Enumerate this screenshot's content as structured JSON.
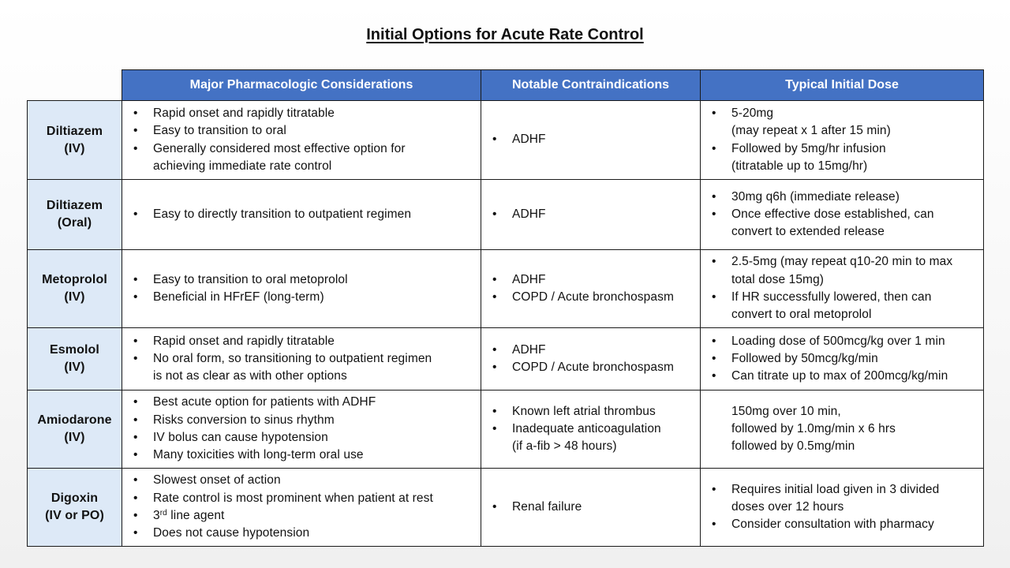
{
  "title": "Initial Options for Acute Rate Control",
  "headers": {
    "col1": "Major Pharmacologic Considerations",
    "col2": "Notable Contraindications",
    "col3": "Typical Initial Dose"
  },
  "rows": [
    {
      "drug": "Diltiazem",
      "route": "(IV)",
      "considerations": [
        {
          "text": "Rapid onset and rapidly titratable",
          "bullet": true
        },
        {
          "text": "Easy to transition to oral",
          "bullet": true
        },
        {
          "text": "Generally considered most effective option for",
          "bullet": true
        },
        {
          "text": "achieving immediate rate control",
          "bullet": false
        }
      ],
      "contraindications": [
        {
          "text": "ADHF",
          "bullet": true
        }
      ],
      "dose": [
        {
          "text": "5-20mg",
          "bullet": true
        },
        {
          "text": "(may repeat x 1 after 15 min)",
          "bullet": false
        },
        {
          "text": "Followed by 5mg/hr infusion",
          "bullet": true
        },
        {
          "text": "(titratable up to 15mg/hr)",
          "bullet": false
        }
      ]
    },
    {
      "drug": "Diltiazem",
      "route": "(Oral)",
      "considerations": [
        {
          "text": "Easy to directly transition to outpatient regimen",
          "bullet": true
        }
      ],
      "contraindications": [
        {
          "text": "ADHF",
          "bullet": true
        }
      ],
      "dose": [
        {
          "text": "30mg q6h (immediate release)",
          "bullet": true
        },
        {
          "text": "Once effective dose established, can",
          "bullet": true
        },
        {
          "text": "convert to extended release",
          "bullet": false
        }
      ]
    },
    {
      "drug": "Metoprolol",
      "route": "(IV)",
      "considerations": [
        {
          "text": "Easy to transition to oral metoprolol",
          "bullet": true
        },
        {
          "text": "Beneficial in HFrEF (long-term)",
          "bullet": true
        }
      ],
      "contraindications": [
        {
          "text": "ADHF",
          "bullet": true
        },
        {
          "text": "COPD / Acute bronchospasm",
          "bullet": true
        }
      ],
      "dose": [
        {
          "text": "2.5-5mg (may repeat q10-20 min to max",
          "bullet": true
        },
        {
          "text": "total dose 15mg)",
          "bullet": false
        },
        {
          "text": "If HR successfully lowered, then can",
          "bullet": true
        },
        {
          "text": "convert to oral metoprolol",
          "bullet": false
        }
      ]
    },
    {
      "drug": "Esmolol",
      "route": "(IV)",
      "considerations": [
        {
          "text": "Rapid onset and rapidly titratable",
          "bullet": true
        },
        {
          "text": "No oral form, so transitioning to outpatient regimen",
          "bullet": true
        },
        {
          "text": "is not as clear as with other options",
          "bullet": false
        }
      ],
      "contraindications": [
        {
          "text": "ADHF",
          "bullet": true
        },
        {
          "text": "COPD / Acute bronchospasm",
          "bullet": true
        }
      ],
      "dose": [
        {
          "text": "Loading dose of 500mcg/kg over 1 min",
          "bullet": true
        },
        {
          "text": "Followed by 50mcg/kg/min",
          "bullet": true
        },
        {
          "text": "Can titrate up to max of 200mcg/kg/min",
          "bullet": true
        }
      ]
    },
    {
      "drug": "Amiodarone",
      "route": "(IV)",
      "considerations": [
        {
          "text": "Best acute option for patients with ADHF",
          "bullet": true
        },
        {
          "text": "Risks conversion to sinus rhythm",
          "bullet": true
        },
        {
          "text": "IV bolus can cause hypotension",
          "bullet": true
        },
        {
          "text": "Many toxicities with long-term oral use",
          "bullet": true
        }
      ],
      "contraindications": [
        {
          "text": "Known left atrial thrombus",
          "bullet": true
        },
        {
          "text": "Inadequate anticoagulation",
          "bullet": true
        },
        {
          "text": "(if a-fib > 48 hours)",
          "bullet": false
        }
      ],
      "dose": [
        {
          "text": "150mg over 10 min,",
          "bullet": false
        },
        {
          "text": "followed by 1.0mg/min x 6 hrs",
          "bullet": false
        },
        {
          "text": "followed by 0.5mg/min",
          "bullet": false
        }
      ]
    },
    {
      "drug": "Digoxin",
      "route": "(IV or PO)",
      "considerations": [
        {
          "text": "Slowest onset of action",
          "bullet": true
        },
        {
          "text": "Rate control is most prominent when patient at rest",
          "bullet": true
        },
        {
          "text": "3",
          "sup": "rd",
          "after": " line agent",
          "bullet": true
        },
        {
          "text": "Does not cause hypotension",
          "bullet": true
        }
      ],
      "contraindications": [
        {
          "text": "Renal failure",
          "bullet": true
        }
      ],
      "dose": [
        {
          "text": "Requires initial load given in 3 divided",
          "bullet": true
        },
        {
          "text": "doses over 12 hours",
          "bullet": false
        },
        {
          "text": "Consider consultation with pharmacy",
          "bullet": true
        }
      ]
    }
  ]
}
